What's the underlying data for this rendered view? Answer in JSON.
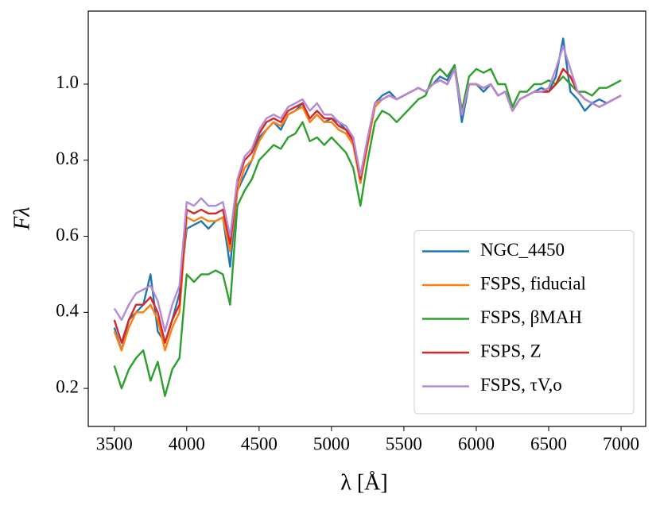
{
  "chart_data": {
    "type": "line",
    "xlabel": "λ [Å]",
    "ylabel": "Fλ",
    "x": [
      3500,
      3550,
      3600,
      3650,
      3700,
      3750,
      3800,
      3850,
      3900,
      3950,
      4000,
      4050,
      4100,
      4150,
      4200,
      4250,
      4300,
      4350,
      4400,
      4450,
      4500,
      4550,
      4600,
      4650,
      4700,
      4750,
      4800,
      4850,
      4900,
      4950,
      5000,
      5050,
      5100,
      5150,
      5200,
      5250,
      5300,
      5350,
      5400,
      5450,
      5500,
      5550,
      5600,
      5650,
      5700,
      5750,
      5800,
      5850,
      5900,
      5950,
      6000,
      6050,
      6100,
      6150,
      6200,
      6250,
      6300,
      6350,
      6400,
      6450,
      6500,
      6550,
      6600,
      6650,
      6700,
      6750,
      6800,
      6850,
      6900,
      6950,
      7000
    ],
    "series": [
      {
        "name": "NGC_4450",
        "color": "#1f77b4",
        "values": [
          0.36,
          0.3,
          0.38,
          0.4,
          0.42,
          0.5,
          0.35,
          0.32,
          0.38,
          0.45,
          0.62,
          0.63,
          0.64,
          0.62,
          0.64,
          0.65,
          0.52,
          0.72,
          0.76,
          0.8,
          0.86,
          0.88,
          0.9,
          0.88,
          0.92,
          0.93,
          0.95,
          0.9,
          0.92,
          0.9,
          0.91,
          0.9,
          0.88,
          0.86,
          0.74,
          0.85,
          0.95,
          0.97,
          0.98,
          0.96,
          0.97,
          0.98,
          0.99,
          0.98,
          1.0,
          1.02,
          1.01,
          1.05,
          0.9,
          1.0,
          1.0,
          0.98,
          1.0,
          0.97,
          0.98,
          0.93,
          0.96,
          0.97,
          0.98,
          0.99,
          0.98,
          1.02,
          1.12,
          0.98,
          0.96,
          0.93,
          0.95,
          0.96,
          0.95,
          0.96,
          0.97
        ]
      },
      {
        "name": "FSPS, fiducial",
        "color": "#ff7f0e",
        "values": [
          0.35,
          0.3,
          0.36,
          0.4,
          0.4,
          0.42,
          0.38,
          0.3,
          0.36,
          0.4,
          0.65,
          0.64,
          0.65,
          0.64,
          0.64,
          0.65,
          0.56,
          0.72,
          0.78,
          0.8,
          0.85,
          0.88,
          0.9,
          0.89,
          0.92,
          0.93,
          0.94,
          0.9,
          0.92,
          0.9,
          0.9,
          0.88,
          0.87,
          0.84,
          0.74,
          0.84,
          0.94,
          0.96,
          0.97,
          0.96,
          0.97,
          0.98,
          0.99,
          0.98,
          1.0,
          1.01,
          1.0,
          1.04,
          0.92,
          1.0,
          1.0,
          0.99,
          1.0,
          0.97,
          0.98,
          0.93,
          0.96,
          0.97,
          0.98,
          0.98,
          0.98,
          1.0,
          1.04,
          1.02,
          0.98,
          0.96,
          0.95,
          0.94,
          0.95,
          0.96,
          0.97
        ]
      },
      {
        "name": "FSPS, βMAH",
        "color": "#2ca02c",
        "values": [
          0.26,
          0.2,
          0.25,
          0.28,
          0.3,
          0.22,
          0.27,
          0.18,
          0.25,
          0.28,
          0.5,
          0.48,
          0.5,
          0.5,
          0.51,
          0.5,
          0.42,
          0.68,
          0.72,
          0.75,
          0.8,
          0.82,
          0.84,
          0.83,
          0.86,
          0.87,
          0.9,
          0.85,
          0.86,
          0.84,
          0.86,
          0.84,
          0.82,
          0.78,
          0.68,
          0.8,
          0.9,
          0.93,
          0.92,
          0.9,
          0.92,
          0.94,
          0.96,
          0.97,
          1.02,
          1.04,
          1.02,
          1.05,
          0.93,
          1.02,
          1.04,
          1.03,
          1.04,
          1.0,
          1.0,
          0.94,
          0.98,
          0.98,
          1.0,
          1.0,
          1.01,
          1.0,
          1.02,
          1.0,
          0.98,
          0.98,
          0.97,
          0.99,
          0.99,
          1.0,
          1.01
        ]
      },
      {
        "name": "FSPS, Z",
        "color": "#d62728",
        "values": [
          0.38,
          0.32,
          0.38,
          0.42,
          0.42,
          0.44,
          0.4,
          0.32,
          0.38,
          0.42,
          0.67,
          0.66,
          0.67,
          0.66,
          0.66,
          0.67,
          0.58,
          0.74,
          0.8,
          0.82,
          0.87,
          0.9,
          0.91,
          0.9,
          0.93,
          0.94,
          0.95,
          0.91,
          0.93,
          0.91,
          0.91,
          0.89,
          0.88,
          0.85,
          0.75,
          0.85,
          0.95,
          0.96,
          0.97,
          0.96,
          0.97,
          0.98,
          0.99,
          0.98,
          1.0,
          1.01,
          1.0,
          1.04,
          0.92,
          1.0,
          1.0,
          0.99,
          1.0,
          0.97,
          0.98,
          0.93,
          0.96,
          0.97,
          0.98,
          0.98,
          0.98,
          1.0,
          1.04,
          1.02,
          0.98,
          0.96,
          0.95,
          0.94,
          0.95,
          0.96,
          0.97
        ]
      },
      {
        "name": "FSPS, τV,o",
        "color": "#b48ad6",
        "values": [
          0.41,
          0.38,
          0.42,
          0.45,
          0.46,
          0.47,
          0.43,
          0.35,
          0.42,
          0.47,
          0.69,
          0.68,
          0.7,
          0.68,
          0.68,
          0.69,
          0.6,
          0.75,
          0.81,
          0.83,
          0.88,
          0.91,
          0.92,
          0.91,
          0.94,
          0.95,
          0.96,
          0.93,
          0.95,
          0.92,
          0.92,
          0.9,
          0.89,
          0.86,
          0.76,
          0.86,
          0.95,
          0.96,
          0.97,
          0.96,
          0.97,
          0.98,
          0.99,
          0.98,
          1.0,
          1.01,
          1.0,
          1.04,
          0.92,
          1.0,
          1.0,
          0.99,
          1.0,
          0.97,
          0.98,
          0.93,
          0.96,
          0.97,
          0.98,
          0.98,
          0.99,
          1.04,
          1.1,
          1.04,
          0.98,
          0.96,
          0.95,
          0.94,
          0.95,
          0.96,
          0.97
        ]
      }
    ],
    "xlim": [
      3320,
      7170
    ],
    "ylim": [
      0.1,
      1.192
    ],
    "xticks": [
      3500,
      4000,
      4500,
      5000,
      5500,
      6000,
      6500,
      7000
    ],
    "yticks": [
      0.2,
      0.4,
      0.6,
      0.8,
      {
        "value": 1,
        "label": "1.0"
      }
    ],
    "grid": false,
    "legend": "lower right"
  }
}
